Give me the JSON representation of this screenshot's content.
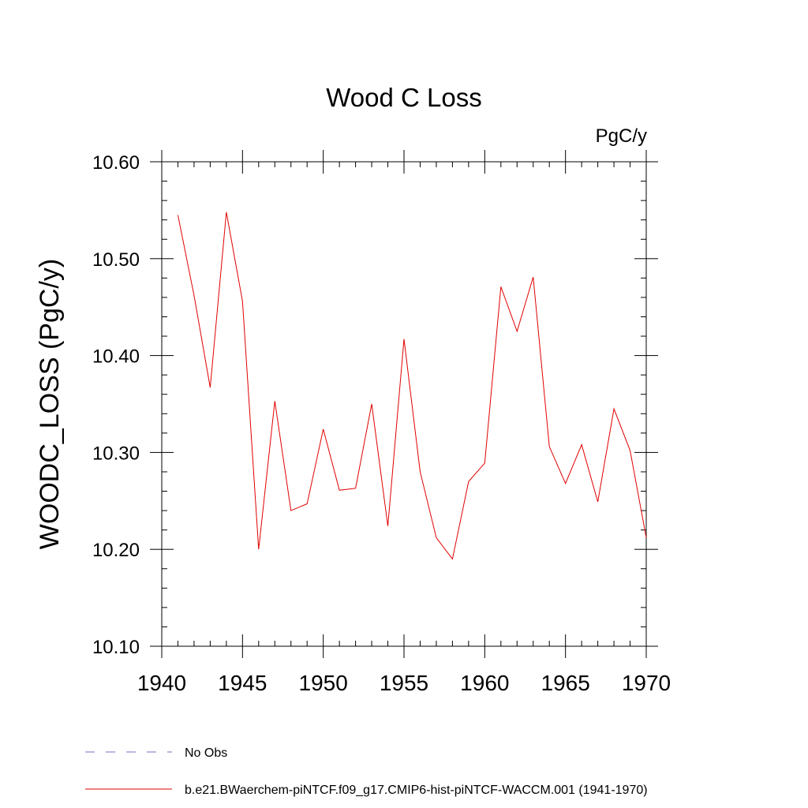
{
  "chart_data": {
    "type": "line",
    "title": "Wood C Loss",
    "units_label": "PgC/y",
    "ylabel": "WOODC_LOSS  (PgC/y)",
    "xlabel": "",
    "xlim": [
      1940,
      1970
    ],
    "ylim": [
      10.1,
      10.6
    ],
    "x_ticks": [
      1940,
      1945,
      1950,
      1955,
      1960,
      1965,
      1970
    ],
    "y_ticks": [
      10.1,
      10.2,
      10.3,
      10.4,
      10.5,
      10.6
    ],
    "y_tick_labels": [
      "10.10",
      "10.20",
      "10.30",
      "10.40",
      "10.50",
      "10.60"
    ],
    "x_minor_step": 1,
    "y_minor_step": 0.02,
    "grid": false,
    "legend": [
      {
        "label": "No Obs",
        "color": "#7b6fc2",
        "dash": "dashed"
      },
      {
        "label": "b.e21.BWaerchem-piNTCF.f09_g17.CMIP6-hist-piNTCF-WACCM.001 (1941-1970)",
        "color": "#e00000",
        "dash": "solid"
      }
    ],
    "series": [
      {
        "name": "b.e21.BWaerchem-piNTCF.f09_g17.CMIP6-hist-piNTCF-WACCM.001 (1941-1970)",
        "color": "#e00000",
        "x": [
          1941,
          1942,
          1943,
          1944,
          1945,
          1946,
          1947,
          1948,
          1949,
          1950,
          1951,
          1952,
          1953,
          1954,
          1955,
          1956,
          1957,
          1958,
          1959,
          1960,
          1961,
          1962,
          1963,
          1964,
          1965,
          1966,
          1967,
          1968,
          1969,
          1970
        ],
        "y": [
          10.545,
          10.462,
          10.367,
          10.548,
          10.456,
          10.2,
          10.353,
          10.24,
          10.247,
          10.324,
          10.261,
          10.263,
          10.35,
          10.224,
          10.417,
          10.28,
          10.212,
          10.19,
          10.27,
          10.289,
          10.471,
          10.425,
          10.481,
          10.306,
          10.268,
          10.308,
          10.249,
          10.345,
          10.302,
          10.212
        ]
      }
    ]
  }
}
